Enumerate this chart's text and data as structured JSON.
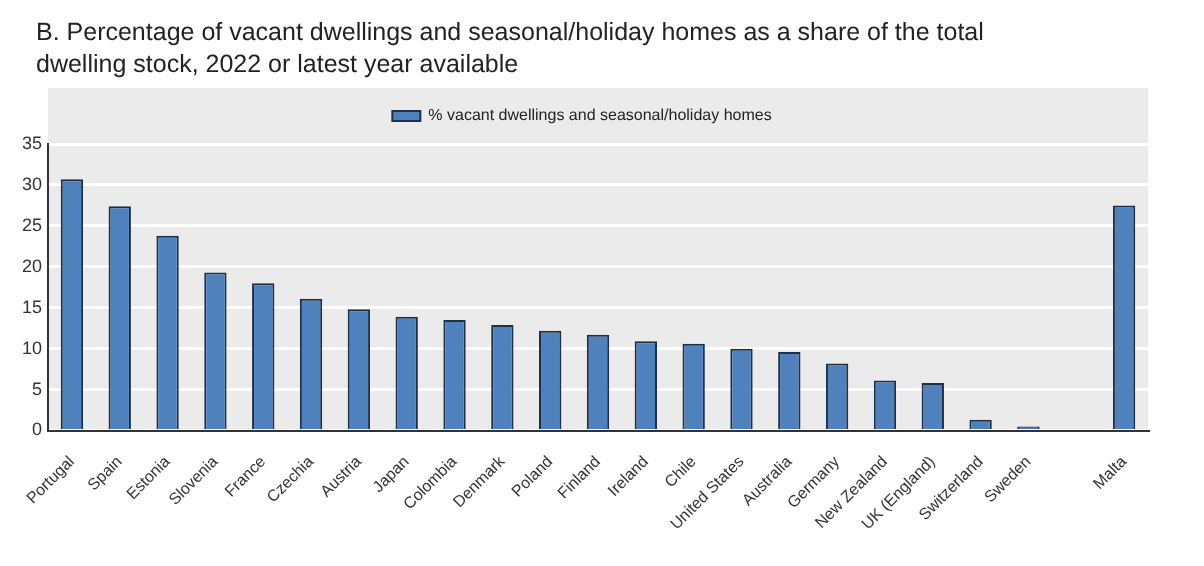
{
  "chart_data": {
    "type": "bar",
    "title": "B. Percentage of vacant dwellings and seasonal/holiday homes as a share of the total dwelling stock, 2022 or latest year available",
    "categories": [
      "Portugal",
      "Spain",
      "Estonia",
      "Slovenia",
      "France",
      "Czechia",
      "Austria",
      "Japan",
      "Colombia",
      "Denmark",
      "Poland",
      "Finland",
      "Ireland",
      "Chile",
      "United States",
      "Australia",
      "Germany",
      "New Zealand",
      "UK (England)",
      "Switzerland",
      "Sweden",
      null,
      "Malta"
    ],
    "series": [
      {
        "name": "% vacant dwellings and seasonal/holiday homes",
        "color": "#4f81bd",
        "values": [
          30.7,
          27.4,
          23.8,
          19.3,
          18.0,
          16.1,
          14.8,
          13.9,
          13.5,
          12.9,
          12.2,
          11.7,
          10.9,
          10.6,
          10.0,
          9.6,
          8.2,
          6.1,
          5.8,
          1.3,
          0.2,
          null,
          27.5
        ]
      }
    ],
    "ylim": [
      0,
      35
    ],
    "yticks": [
      0,
      5,
      10,
      15,
      20,
      25,
      30,
      35
    ],
    "grid": "y",
    "legend": "top"
  }
}
